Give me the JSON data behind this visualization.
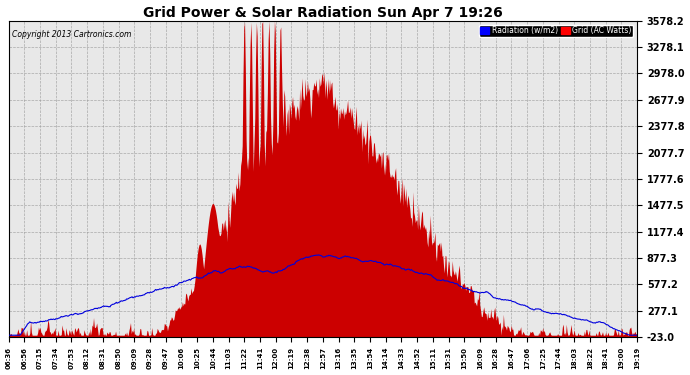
{
  "title": "Grid Power & Solar Radiation Sun Apr 7 19:26",
  "copyright": "Copyright 2013 Cartronics.com",
  "legend_radiation": "Radiation (w/m2)",
  "legend_grid": "Grid (AC Watts)",
  "yticks": [
    -23.0,
    277.1,
    577.2,
    877.3,
    1177.4,
    1477.5,
    1777.6,
    2077.7,
    2377.8,
    2677.9,
    2978.0,
    3278.1,
    3578.2
  ],
  "ylim": [
    -23.0,
    3578.2
  ],
  "bg_color": "#e8e8e8",
  "red_color": "#cc0000",
  "blue_color": "#0000dd",
  "grid_color": "#999999",
  "xtick_labels": [
    "06:36",
    "06:56",
    "07:15",
    "07:34",
    "07:53",
    "08:12",
    "08:31",
    "08:50",
    "09:09",
    "09:28",
    "09:47",
    "10:06",
    "10:25",
    "10:44",
    "11:03",
    "11:22",
    "11:41",
    "12:00",
    "12:19",
    "12:38",
    "12:57",
    "13:16",
    "13:35",
    "13:54",
    "14:14",
    "14:33",
    "14:52",
    "15:11",
    "15:31",
    "15:50",
    "16:09",
    "16:28",
    "16:47",
    "17:06",
    "17:25",
    "17:44",
    "18:03",
    "18:22",
    "18:41",
    "19:00",
    "19:19"
  ],
  "figsize": [
    6.9,
    3.75
  ],
  "dpi": 100
}
